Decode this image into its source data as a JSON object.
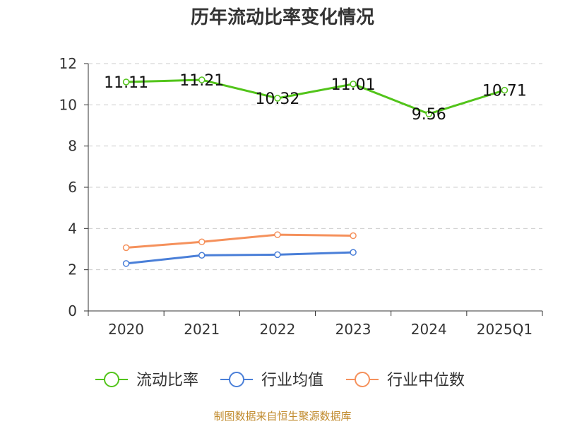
{
  "title": "历年流动比率变化情况",
  "source": "制图数据来自恒生聚源数据库",
  "chart_data": {
    "type": "line",
    "title": "历年流动比率变化情况",
    "categories": [
      "2020",
      "2021",
      "2022",
      "2023",
      "2024",
      "2025Q1"
    ],
    "ylim": [
      0,
      12
    ],
    "yticks": [
      0,
      2,
      4,
      6,
      8,
      10,
      12
    ],
    "grid": true,
    "legend_position": "bottom",
    "series": [
      {
        "name": "流动比率",
        "color": "#52c41a",
        "values": [
          11.11,
          11.21,
          10.32,
          11.01,
          9.56,
          10.71
        ],
        "labels": [
          "11.11",
          "11.21",
          "10.32",
          "11.01",
          "9.56",
          "10.71"
        ]
      },
      {
        "name": "行业均值",
        "color": "#4a7fd8",
        "values": [
          2.3,
          2.7,
          2.73,
          2.84,
          null,
          null
        ]
      },
      {
        "name": "行业中位数",
        "color": "#f5915c",
        "values": [
          3.07,
          3.35,
          3.7,
          3.65,
          null,
          null
        ]
      }
    ]
  }
}
